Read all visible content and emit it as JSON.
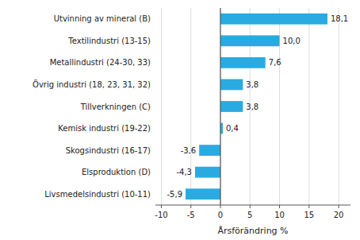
{
  "chart_data": {
    "type": "bar",
    "orientation": "horizontal",
    "categories": [
      "Livsmedelsindustri (10-11)",
      "Elsproduktion (D)",
      "Skogsindustri (16-17)",
      "Kemisk industri (19-22)",
      "Tillverkningen (C)",
      "Övrig industri (18, 23, 31, 32)",
      "Metallindustri (24-30, 33)",
      "Textilindustri (13-15)",
      "Utvinning av mineral (B)"
    ],
    "values": [
      -5.9,
      -4.3,
      -3.6,
      0.4,
      3.8,
      3.8,
      7.6,
      10.0,
      18.1
    ],
    "value_labels": [
      "-5,9",
      "-4,3",
      "-3,6",
      "0,4",
      "3,8",
      "3,8",
      "7,6",
      "10,0",
      "18,1"
    ],
    "data_labels": true,
    "color": "#29abe2",
    "xlabel": "Årsförändring %",
    "xlim": [
      -11,
      22
    ],
    "xticks": [
      -10,
      -5,
      0,
      5,
      10,
      15,
      20
    ],
    "grid": true
  }
}
